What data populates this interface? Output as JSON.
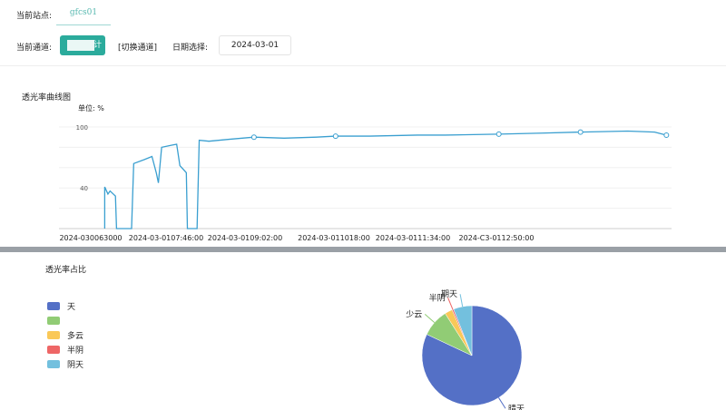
{
  "header": {
    "station_label": "当前站点:",
    "station_value": "gfcs01",
    "channel_label": "当前通道:",
    "channel_value": "计",
    "switch_channel": "[切换通道]",
    "date_label": "日期选择:",
    "date_value": "2024-03-01"
  },
  "line_chart": {
    "title": "透光率曲线图",
    "unit": "单位: %",
    "chart_data": {
      "type": "line",
      "ylim": [
        0,
        100
      ],
      "y_ticks": [
        100,
        40
      ],
      "grid": true,
      "color": "#3a9fd0",
      "x_tick_labels": [
        "2024-030063000",
        "2024-03-0107:46:00",
        "2024-03-0109:02:00",
        "2024-03-011018:00",
        "2024-03-0111:34:00",
        "2024-C3-0112:50:00"
      ],
      "points": [
        [
          "06:43",
          0
        ],
        [
          "06:43",
          41
        ],
        [
          "06:46",
          34
        ],
        [
          "06:48",
          37
        ],
        [
          "06:53",
          32
        ],
        [
          "06:54",
          0
        ],
        [
          "07:08",
          0
        ],
        [
          "07:10",
          64
        ],
        [
          "07:20",
          68
        ],
        [
          "07:27",
          71
        ],
        [
          "07:31",
          55
        ],
        [
          "07:33",
          45
        ],
        [
          "07:36",
          80
        ],
        [
          "07:45",
          82
        ],
        [
          "07:50",
          83
        ],
        [
          "07:53",
          62
        ],
        [
          "07:59",
          55
        ],
        [
          "08:00",
          0
        ],
        [
          "08:09",
          0
        ],
        [
          "08:11",
          87
        ],
        [
          "08:20",
          86
        ],
        [
          "08:40",
          88
        ],
        [
          "09:02",
          90
        ],
        [
          "09:30",
          89
        ],
        [
          "10:00",
          90
        ],
        [
          "10:18",
          91
        ],
        [
          "10:50",
          91
        ],
        [
          "11:34",
          92
        ],
        [
          "12:00",
          92
        ],
        [
          "12:50",
          93
        ],
        [
          "13:30",
          94
        ],
        [
          "14:06",
          95
        ],
        [
          "14:50",
          96
        ],
        [
          "15:15",
          95
        ],
        [
          "15:26",
          92
        ]
      ],
      "markers": [
        "09:02",
        "10:18",
        "12:50",
        "14:06",
        "15:26"
      ]
    }
  },
  "pie_chart": {
    "title": "透光率占比",
    "chart_data": {
      "type": "pie",
      "slices": [
        {
          "name": "晴天",
          "value": 82,
          "color": "#5470c6"
        },
        {
          "name": "少云",
          "value": 9,
          "color": "#91cc75"
        },
        {
          "name": "多云",
          "value": 2.5,
          "color": "#fac858"
        },
        {
          "name": "半阴",
          "value": 0.5,
          "color": "#ee6666"
        },
        {
          "name": "阴天",
          "value": 6,
          "color": "#73c0de"
        }
      ],
      "legend_labels": [
        "天",
        "",
        "多云",
        "半阴",
        "阴天"
      ],
      "outer_labels": [
        "晴天",
        "少云",
        "",
        "半阴",
        "期天"
      ],
      "legend": "left"
    }
  }
}
